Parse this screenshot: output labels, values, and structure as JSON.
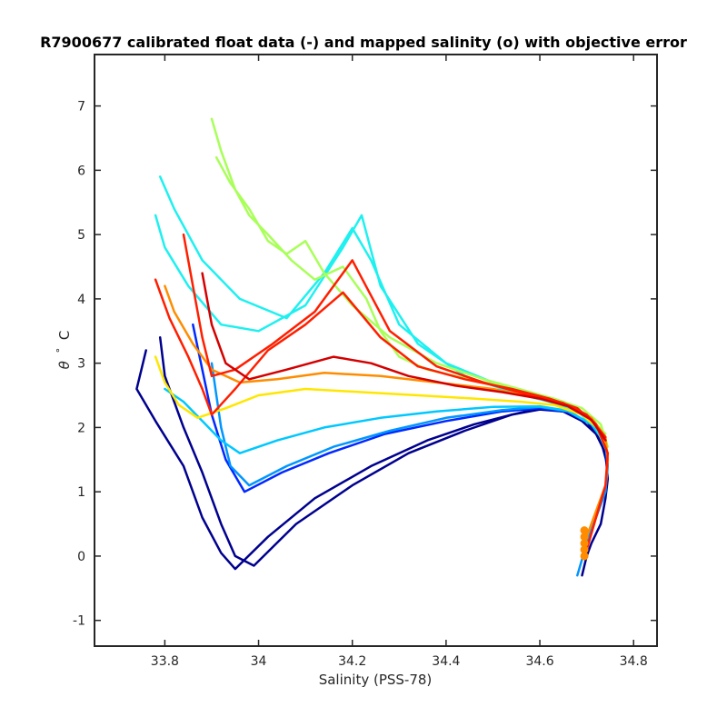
{
  "chart_data": {
    "type": "line",
    "title": "R7900677 calibrated float data (-) and mapped salinity (o) with objective error",
    "xlabel": "Salinity (PSS-78)",
    "ylabel_theta": "θ",
    "ylabel_deg": "°",
    "ylabel_unit": "C",
    "xlim": [
      33.65,
      34.85
    ],
    "ylim": [
      -1.4,
      7.8
    ],
    "xticks": [
      33.8,
      34.0,
      34.2,
      34.4,
      34.6,
      34.8
    ],
    "xtick_labels": [
      "33.8",
      "34",
      "34.2",
      "34.4",
      "34.6",
      "34.8"
    ],
    "yticks": [
      -1,
      0,
      1,
      2,
      3,
      4,
      5,
      6,
      7
    ],
    "ytick_labels": [
      "-1",
      "0",
      "1",
      "2",
      "3",
      "4",
      "5",
      "6",
      "7"
    ],
    "grid": false,
    "colormap": "jet",
    "colors": {
      "dark_blue": "#00008f",
      "blue": "#0050ff",
      "light_blue": "#00b4ff",
      "cyan": "#1ef0f0",
      "green_yellow": "#a8ff58",
      "yellow": "#ffe600",
      "orange": "#ff8c00",
      "red": "#ff1e00",
      "dark_red": "#d40000",
      "marker_orange": "#ff8c00"
    },
    "series": [
      {
        "color": "#00008f",
        "x": [
          33.76,
          33.75,
          33.74,
          33.78,
          33.84,
          33.88,
          33.92,
          33.95,
          34.02,
          34.12,
          34.24,
          34.36,
          34.46,
          34.54,
          34.6,
          34.65,
          34.69,
          34.72,
          34.74,
          34.745,
          34.74,
          34.73,
          34.71,
          34.7,
          34.69
        ],
        "y": [
          3.2,
          2.9,
          2.6,
          2.1,
          1.4,
          0.6,
          0.05,
          -0.2,
          0.3,
          0.9,
          1.4,
          1.8,
          2.05,
          2.2,
          2.3,
          2.25,
          2.1,
          1.9,
          1.6,
          1.2,
          0.9,
          0.5,
          0.2,
          0.0,
          -0.3
        ]
      },
      {
        "color": "#00008f",
        "x": [
          33.79,
          33.8,
          33.84,
          33.88,
          33.92,
          33.95,
          33.99,
          34.08,
          34.2,
          34.32,
          34.44,
          34.54,
          34.6,
          34.65,
          34.7,
          34.73,
          34.745
        ],
        "y": [
          3.4,
          2.8,
          2.0,
          1.3,
          0.5,
          0.0,
          -0.15,
          0.5,
          1.1,
          1.6,
          1.95,
          2.2,
          2.28,
          2.25,
          2.1,
          1.8,
          1.4
        ]
      },
      {
        "color": "#0028ff",
        "x": [
          33.86,
          33.88,
          33.9,
          33.93,
          33.97,
          34.05,
          34.15,
          34.27,
          34.4,
          34.52,
          34.6,
          34.66,
          34.71,
          34.74,
          34.745
        ],
        "y": [
          3.6,
          2.9,
          2.2,
          1.5,
          1.0,
          1.3,
          1.6,
          1.9,
          2.1,
          2.25,
          2.3,
          2.24,
          2.05,
          1.75,
          1.4
        ]
      },
      {
        "color": "#0096ff",
        "x": [
          33.9,
          33.91,
          33.92,
          33.94,
          33.98,
          34.06,
          34.16,
          34.28,
          34.4,
          34.52,
          34.6,
          34.66,
          34.71,
          34.74,
          34.745,
          34.74,
          34.72,
          34.7,
          34.68
        ],
        "y": [
          3.0,
          2.5,
          2.0,
          1.4,
          1.1,
          1.4,
          1.7,
          1.95,
          2.15,
          2.27,
          2.32,
          2.25,
          2.05,
          1.75,
          1.4,
          1.0,
          0.6,
          0.2,
          -0.3
        ]
      },
      {
        "color": "#00c8ff",
        "x": [
          33.8,
          33.84,
          33.88,
          33.92,
          33.96,
          34.04,
          34.14,
          34.26,
          34.38,
          34.5,
          34.6,
          34.66,
          34.71,
          34.74
        ],
        "y": [
          2.6,
          2.4,
          2.1,
          1.8,
          1.6,
          1.8,
          2.0,
          2.15,
          2.25,
          2.32,
          2.33,
          2.26,
          2.05,
          1.75
        ]
      },
      {
        "color": "#1ef0f0",
        "x": [
          33.78,
          33.8,
          33.85,
          33.92,
          34.0,
          34.1,
          34.18,
          34.22,
          34.26,
          34.34,
          34.44,
          34.54,
          34.62,
          34.68,
          34.72,
          34.745
        ],
        "y": [
          5.3,
          4.8,
          4.2,
          3.6,
          3.5,
          3.9,
          4.8,
          5.3,
          4.2,
          3.3,
          2.8,
          2.55,
          2.4,
          2.25,
          2.0,
          1.6
        ]
      },
      {
        "color": "#1ef0f0",
        "x": [
          33.79,
          33.82,
          33.88,
          33.96,
          34.06,
          34.14,
          34.2,
          34.24,
          34.3,
          34.4,
          34.5,
          34.6,
          34.67,
          34.72
        ],
        "y": [
          5.9,
          5.4,
          4.6,
          4.0,
          3.7,
          4.4,
          5.1,
          4.6,
          3.6,
          3.0,
          2.7,
          2.48,
          2.33,
          2.05
        ]
      },
      {
        "color": "#a8ff58",
        "x": [
          33.9,
          33.92,
          33.95,
          33.98,
          34.02,
          34.07,
          34.12,
          34.18,
          34.23,
          34.26,
          34.3,
          34.36,
          34.45,
          34.55,
          34.63,
          34.69,
          34.73,
          34.745
        ],
        "y": [
          6.8,
          6.3,
          5.7,
          5.3,
          5.0,
          4.6,
          4.3,
          4.5,
          4.0,
          3.5,
          3.1,
          2.9,
          2.75,
          2.6,
          2.45,
          2.3,
          2.05,
          1.7
        ]
      },
      {
        "color": "#a8ff58",
        "x": [
          33.91,
          33.94,
          33.98,
          34.02,
          34.06,
          34.1,
          34.14,
          34.2,
          34.28,
          34.38,
          34.48,
          34.58,
          34.65,
          34.7,
          34.74
        ],
        "y": [
          6.2,
          5.8,
          5.4,
          4.9,
          4.7,
          4.9,
          4.4,
          3.9,
          3.4,
          3.0,
          2.75,
          2.55,
          2.4,
          2.2,
          1.9
        ]
      },
      {
        "color": "#ffe600",
        "x": [
          33.78,
          33.8,
          33.83,
          33.87,
          33.93,
          34.0,
          34.1,
          34.22,
          34.34,
          34.46,
          34.56,
          34.63,
          34.69,
          34.73,
          34.745
        ],
        "y": [
          3.1,
          2.7,
          2.35,
          2.15,
          2.3,
          2.5,
          2.6,
          2.55,
          2.5,
          2.45,
          2.4,
          2.35,
          2.2,
          1.95,
          1.6
        ]
      },
      {
        "color": "#ff8c00",
        "x": [
          33.8,
          33.82,
          33.86,
          33.9,
          33.96,
          34.04,
          34.14,
          34.26,
          34.38,
          34.5,
          34.6,
          34.66,
          34.71,
          34.74,
          34.745,
          34.74,
          34.72,
          34.7,
          34.69
        ],
        "y": [
          4.2,
          3.8,
          3.3,
          2.9,
          2.7,
          2.75,
          2.85,
          2.8,
          2.7,
          2.6,
          2.45,
          2.35,
          2.15,
          1.85,
          1.5,
          1.1,
          0.7,
          0.3,
          0.0
        ]
      },
      {
        "color": "#ff1e00",
        "x": [
          33.78,
          33.81,
          33.85,
          33.88,
          33.9,
          33.95,
          34.02,
          34.1,
          34.18,
          34.26,
          34.34,
          34.44,
          34.54,
          34.62,
          34.68,
          34.72,
          34.745,
          34.74,
          34.72,
          34.7
        ],
        "y": [
          4.3,
          3.7,
          3.1,
          2.6,
          2.2,
          2.6,
          3.2,
          3.6,
          4.1,
          3.4,
          2.95,
          2.75,
          2.6,
          2.45,
          2.3,
          2.05,
          1.6,
          1.1,
          0.6,
          0.1
        ]
      },
      {
        "color": "#ff1e00",
        "x": [
          33.84,
          33.86,
          33.88,
          33.9,
          33.95,
          34.03,
          34.12,
          34.2,
          34.28,
          34.38,
          34.48,
          34.58,
          34.65,
          34.7,
          34.74
        ],
        "y": [
          5.0,
          4.2,
          3.4,
          2.8,
          2.9,
          3.3,
          3.8,
          4.6,
          3.5,
          2.95,
          2.7,
          2.5,
          2.38,
          2.2,
          1.85
        ]
      },
      {
        "color": "#d40000",
        "x": [
          33.88,
          33.9,
          33.93,
          33.98,
          34.06,
          34.16,
          34.24,
          34.32,
          34.42,
          34.52,
          34.6,
          34.66,
          34.71,
          34.74
        ],
        "y": [
          4.4,
          3.6,
          3.0,
          2.75,
          2.9,
          3.1,
          3.0,
          2.8,
          2.65,
          2.55,
          2.45,
          2.33,
          2.12,
          1.8
        ]
      }
    ],
    "marker_cluster": {
      "x_center": 34.695,
      "y_values": [
        0.0,
        0.1,
        0.2,
        0.3,
        0.4
      ],
      "color": "#ff8c00"
    }
  }
}
